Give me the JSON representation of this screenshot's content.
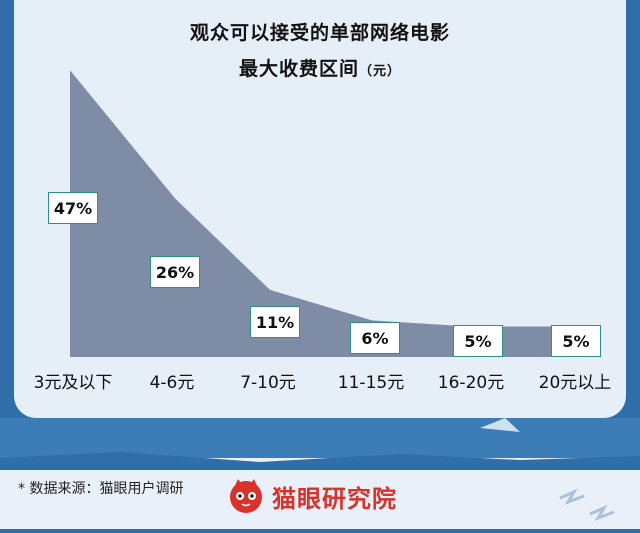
{
  "title": {
    "line1": "观众可以接受的单部网络电影",
    "line2": "最大收费区间",
    "unit": "（元）"
  },
  "chart_data": {
    "type": "area",
    "categories": [
      "3元及以下",
      "4-6元",
      "7-10元",
      "11-15元",
      "16-20元",
      "20元以上"
    ],
    "values": [
      47,
      26,
      11,
      6,
      5,
      5
    ],
    "value_labels": [
      "47%",
      "26%",
      "11%",
      "6%",
      "5%",
      "5%"
    ],
    "ylim": [
      0,
      50
    ],
    "grid": false,
    "colors": {
      "area": "#7f8ca5",
      "label_border": "#2e8f82"
    }
  },
  "footer": {
    "footnote": "* 数据来源：猫眼用户调研",
    "brand_name": "猫眼研究院",
    "brand_icon": "cat-logo-icon",
    "brand_color": "#d8322a"
  }
}
